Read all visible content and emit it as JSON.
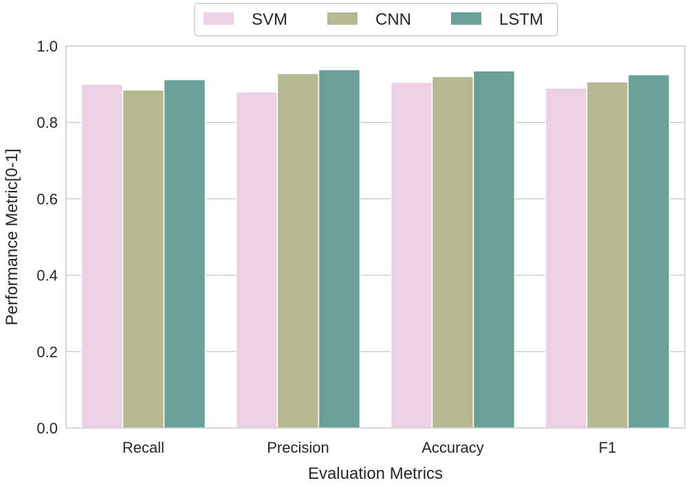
{
  "chart_data": {
    "type": "bar",
    "categories": [
      "Recall",
      "Precision",
      "Accuracy",
      "F1"
    ],
    "series": [
      {
        "name": "SVM",
        "values": [
          0.9,
          0.88,
          0.905,
          0.89
        ],
        "color": "#ebd1e3"
      },
      {
        "name": "CNN",
        "values": [
          0.885,
          0.928,
          0.92,
          0.906
        ],
        "color": "#b6b88f"
      },
      {
        "name": "LSTM",
        "values": [
          0.912,
          0.938,
          0.935,
          0.925
        ],
        "color": "#69a198"
      }
    ],
    "xlabel": "Evaluation Metrics",
    "ylabel": "Performance Metric[0-1]",
    "ylim": [
      0,
      1.0
    ],
    "yticks": [
      "0.0",
      "0.2",
      "0.4",
      "0.6",
      "0.8",
      "1.0"
    ],
    "grid": "horizontal",
    "legend_position": "top-center",
    "gridline_color": "#cccccc",
    "axes_edge_color": "#cccccc"
  }
}
